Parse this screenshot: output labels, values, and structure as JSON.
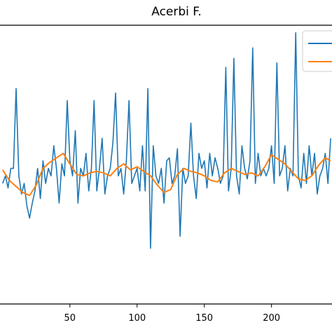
{
  "chart_data": {
    "type": "line",
    "title": "Acerbi F.",
    "xlabel": "",
    "ylabel": "",
    "xlim": [
      -2,
      245
    ],
    "ylim": [
      -0.85,
      1.0
    ],
    "x_ticks": [
      50,
      100,
      150,
      200
    ],
    "grid": false,
    "legend": {
      "placement": "top-right",
      "entries": [
        "",
        ""
      ]
    },
    "colors": {
      "series1": "#1f77b4",
      "series2": "#ff7f0e",
      "axes": "#000000"
    },
    "series": [
      {
        "x": [
          0,
          2,
          4,
          6,
          8,
          10,
          12,
          14,
          16,
          18,
          20,
          22,
          24,
          26,
          28,
          30,
          32,
          34,
          36,
          38,
          40,
          42,
          44,
          46,
          48,
          50,
          52,
          54,
          56,
          58,
          60,
          62,
          64,
          66,
          68,
          70,
          72,
          74,
          76,
          78,
          80,
          82,
          84,
          86,
          88,
          90,
          92,
          94,
          96,
          98,
          100,
          102,
          104,
          106,
          108,
          110,
          112,
          114,
          116,
          118,
          120,
          122,
          124,
          126,
          128,
          130,
          132,
          134,
          136,
          138,
          140,
          142,
          144,
          146,
          148,
          150,
          152,
          154,
          156,
          158,
          160,
          162,
          164,
          166,
          168,
          170,
          172,
          174,
          176,
          178,
          180,
          182,
          184,
          186,
          188,
          190,
          192,
          194,
          196,
          198,
          200,
          202,
          204,
          206,
          208,
          210,
          212,
          214,
          216,
          218,
          220,
          222,
          224,
          226,
          228,
          230,
          232,
          234,
          236,
          238,
          240,
          242,
          244
        ],
        "values": [
          -0.05,
          0.0,
          -0.08,
          0.05,
          0.05,
          0.58,
          0.0,
          -0.12,
          -0.05,
          -0.2,
          -0.28,
          -0.18,
          -0.1,
          0.05,
          -0.15,
          0.1,
          -0.05,
          0.05,
          0.0,
          0.2,
          0.05,
          -0.18,
          0.08,
          0.0,
          0.5,
          0.1,
          0.0,
          0.3,
          -0.18,
          0.05,
          0.0,
          0.15,
          -0.1,
          0.05,
          0.5,
          -0.1,
          0.05,
          0.25,
          -0.12,
          0.0,
          0.05,
          0.22,
          0.55,
          0.0,
          0.05,
          -0.12,
          0.1,
          0.5,
          -0.05,
          0.0,
          0.05,
          -0.1,
          0.2,
          -0.1,
          0.58,
          -0.48,
          0.2,
          0.0,
          -0.05,
          0.05,
          -0.18,
          0.1,
          0.12,
          -0.05,
          0.0,
          0.18,
          -0.4,
          0.05,
          -0.05,
          0.0,
          0.35,
          0.0,
          -0.15,
          0.15,
          0.05,
          0.1,
          -0.08,
          0.15,
          0.0,
          0.12,
          0.05,
          -0.05,
          0.0,
          0.72,
          -0.1,
          0.05,
          0.78,
          0.0,
          -0.12,
          0.2,
          0.05,
          -0.02,
          0.1,
          0.85,
          -0.05,
          0.15,
          0.0,
          0.05,
          0.0,
          0.05,
          0.2,
          -0.05,
          0.75,
          0.0,
          0.05,
          0.2,
          -0.1,
          0.05,
          0.0,
          0.95,
          0.0,
          -0.08,
          0.15,
          -0.05,
          0.2,
          0.0,
          0.15,
          -0.12,
          0.0,
          0.05,
          0.15,
          -0.05,
          0.25
        ]
      },
      {
        "x": [
          0,
          5,
          10,
          15,
          20,
          25,
          30,
          35,
          40,
          45,
          50,
          55,
          60,
          65,
          70,
          75,
          80,
          85,
          90,
          95,
          100,
          105,
          110,
          115,
          120,
          125,
          130,
          135,
          140,
          145,
          150,
          155,
          160,
          165,
          170,
          175,
          180,
          185,
          190,
          195,
          200,
          205,
          210,
          215,
          220,
          225,
          230,
          235,
          240,
          244
        ],
        "values": [
          0.04,
          -0.03,
          -0.07,
          -0.11,
          -0.13,
          -0.06,
          0.05,
          0.09,
          0.12,
          0.15,
          0.08,
          0.01,
          0.0,
          0.02,
          0.03,
          0.02,
          0.0,
          0.05,
          0.08,
          0.04,
          0.06,
          0.03,
          0.0,
          -0.06,
          -0.11,
          -0.09,
          0.01,
          0.05,
          0.03,
          0.02,
          0.0,
          -0.03,
          -0.04,
          0.02,
          0.05,
          0.03,
          0.01,
          0.02,
          0.0,
          0.06,
          0.14,
          0.11,
          0.08,
          0.03,
          -0.02,
          -0.03,
          0.0,
          0.07,
          0.12,
          0.1
        ]
      }
    ]
  }
}
